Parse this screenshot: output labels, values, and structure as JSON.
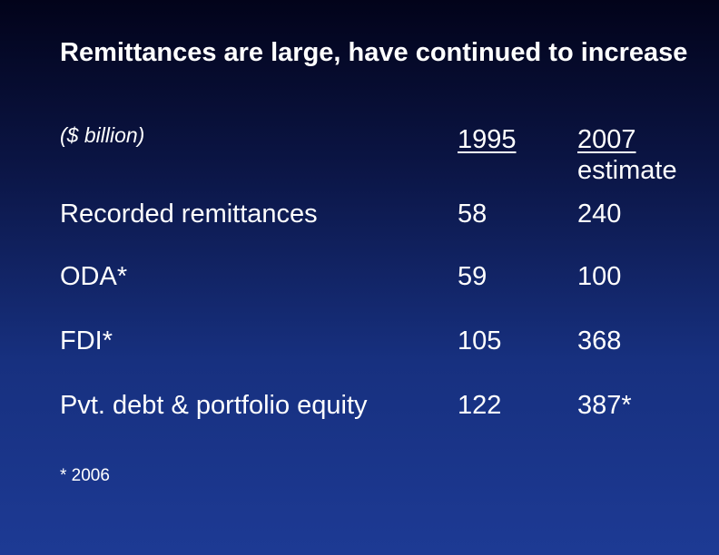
{
  "slide": {
    "title": "Remittances are large, have continued to increase",
    "unit_note": "($ billion)",
    "columns": {
      "col1_label": "1995",
      "col2_year": "2007",
      "col2_sub": "estimate"
    },
    "rows": [
      {
        "label": "Recorded remittances",
        "v1995": "58",
        "v2007": "240"
      },
      {
        "label": "ODA*",
        "v1995": "59",
        "v2007": "100"
      },
      {
        "label": "FDI*",
        "v1995": "105",
        "v2007": "368"
      },
      {
        "label": "Pvt. debt & portfolio equity",
        "v1995": "122",
        "v2007": "387*"
      }
    ],
    "footnote": "* 2006"
  },
  "colors": {
    "background_top": "#02031a",
    "background_bottom": "#1d3a94",
    "text": "#ffffff"
  }
}
